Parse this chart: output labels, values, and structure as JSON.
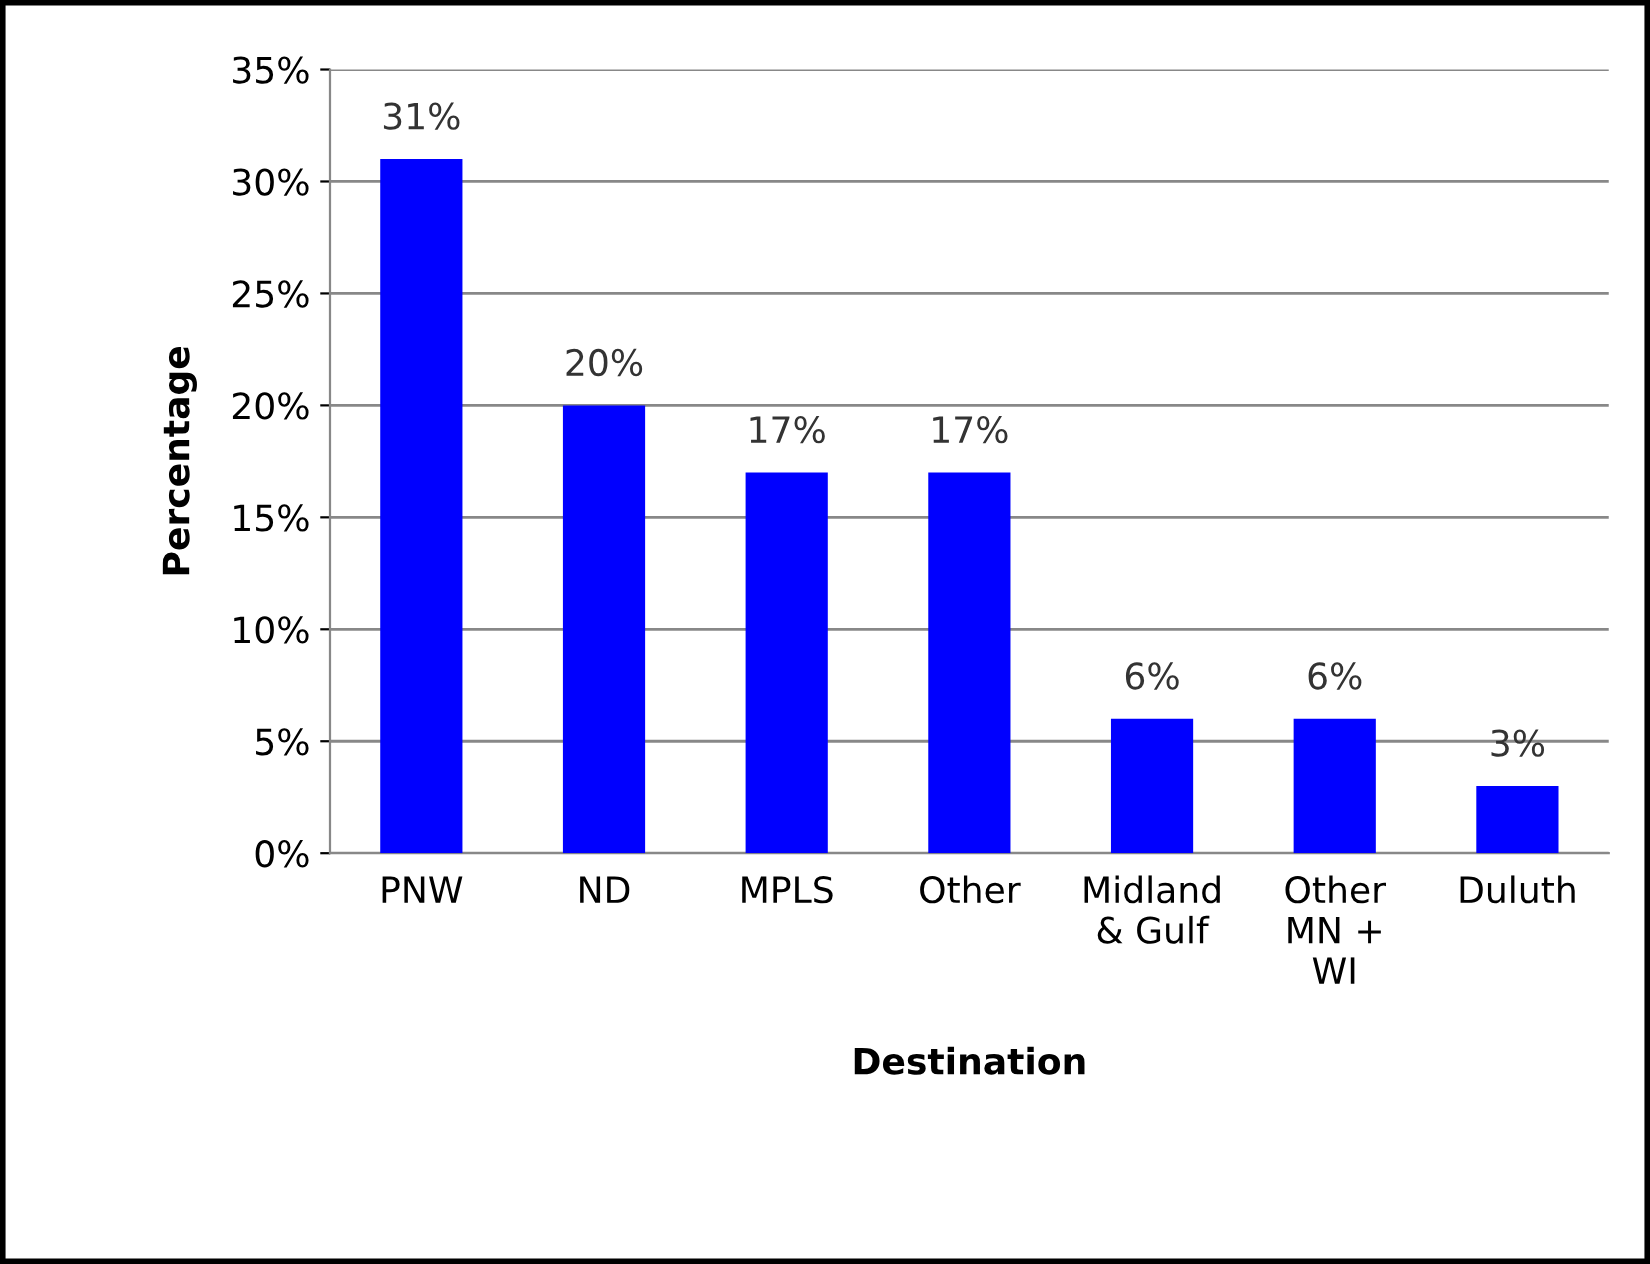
{
  "chart_data": {
    "type": "bar",
    "xlabel": "Destination",
    "ylabel": "Percentage",
    "categories": [
      "PNW",
      "ND",
      "MPLS",
      "Other",
      "Midland\n& Gulf",
      "Other\nMN +\nWI",
      "Duluth"
    ],
    "values": [
      31,
      20,
      17,
      17,
      6,
      6,
      3
    ],
    "value_labels": [
      "31%",
      "20%",
      "17%",
      "17%",
      "6%",
      "6%",
      "3%"
    ],
    "color": "#0000ff",
    "ylim": [
      0,
      35
    ],
    "yticks": [
      {
        "value": 0,
        "label": "0%"
      },
      {
        "value": 5,
        "label": "5%"
      },
      {
        "value": 10,
        "label": "10%"
      },
      {
        "value": 15,
        "label": "15%"
      },
      {
        "value": 20,
        "label": "20%"
      },
      {
        "value": 25,
        "label": "25%"
      },
      {
        "value": 30,
        "label": "30%"
      },
      {
        "value": 35,
        "label": "35%"
      }
    ],
    "grid": "y",
    "legend": false
  }
}
